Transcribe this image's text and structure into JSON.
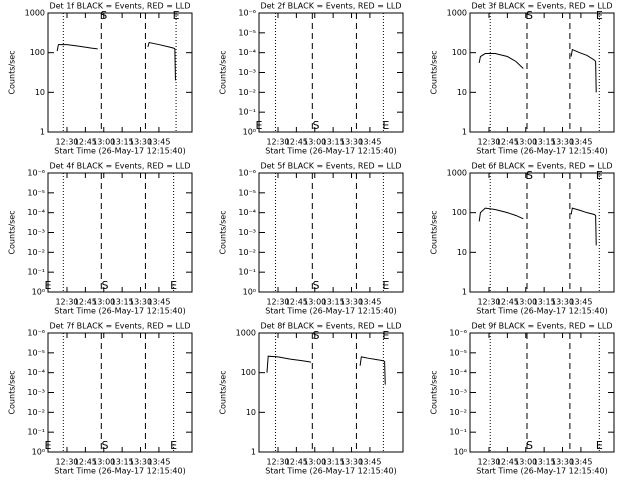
{
  "chart_data": [
    {
      "type": "line",
      "title": "Det 1f BLACK = Events, RED = LLD",
      "ylabel": "Counts/sec",
      "xlabel": "Start Time (26-May-17 12:15:40)",
      "xlim": [
        14.5,
        132
      ],
      "xticks": [
        {
          "value": 30,
          "label": "12:30"
        },
        {
          "value": 45,
          "label": "12:45"
        },
        {
          "value": 60,
          "label": "13:00"
        },
        {
          "value": 75,
          "label": "13:15"
        },
        {
          "value": 90,
          "label": "13:30"
        },
        {
          "value": 105,
          "label": "13:45"
        }
      ],
      "log_y": true,
      "ylim": [
        1,
        1000
      ],
      "yticks": [
        1,
        10,
        100,
        1000
      ],
      "vlines": {
        "dotted": [
          27,
          119
        ],
        "dashed": [
          58,
          94
        ]
      },
      "annotations": [
        {
          "text": "S",
          "x": 60,
          "position": "top"
        },
        {
          "text": "E",
          "x": 119,
          "position": "top"
        }
      ],
      "color": "#000000",
      "x": [
        22,
        23,
        30,
        40,
        50,
        55,
        75,
        96,
        97,
        105,
        113,
        117,
        118,
        118.5
      ],
      "values": [
        110,
        160,
        160,
        145,
        130,
        125,
        null,
        140,
        180,
        160,
        140,
        130,
        125,
        20
      ]
    },
    {
      "type": "line",
      "title": "Det 2f BLACK = Events, RED = LLD",
      "ylabel": "Counts/sec",
      "xlabel": "Start Time (26-May-17 12:15:40)",
      "xlim": [
        14.5,
        132
      ],
      "xticks": [
        {
          "value": 30,
          "label": "12:30"
        },
        {
          "value": 45,
          "label": "12:45"
        },
        {
          "value": 60,
          "label": "13:00"
        },
        {
          "value": 75,
          "label": "13:15"
        },
        {
          "value": 90,
          "label": "13:30"
        },
        {
          "value": 105,
          "label": "13:45"
        }
      ],
      "log_y": true,
      "ylim": [
        1,
        1e-06
      ],
      "yticks": [
        {
          "value": 1,
          "label": "10⁰"
        },
        {
          "value": 0.1,
          "label": "10⁻¹"
        },
        {
          "value": 0.01,
          "label": "10⁻²"
        },
        {
          "value": 0.001,
          "label": "10⁻³"
        },
        {
          "value": 0.0001,
          "label": "10⁻⁴"
        },
        {
          "value": 1e-05,
          "label": "10⁻⁵"
        },
        {
          "value": 1e-06,
          "label": "10⁻⁶"
        }
      ],
      "vlines": {
        "dotted": [
          28,
          116
        ],
        "dashed": [
          58,
          94
        ]
      },
      "annotations": [
        {
          "text": "E",
          "x": 14.5,
          "position": "bottom"
        },
        {
          "text": "S",
          "x": 61,
          "position": "bottom"
        },
        {
          "text": "E",
          "x": 118,
          "position": "bottom"
        }
      ]
    },
    {
      "type": "line",
      "title": "Det 3f BLACK = Events, RED = LLD",
      "ylabel": "Counts/sec",
      "xlabel": "Start Time (26-May-17 12:15:40)",
      "xlim": [
        14.5,
        132
      ],
      "xticks": [
        {
          "value": 30,
          "label": "12:30"
        },
        {
          "value": 45,
          "label": "12:45"
        },
        {
          "value": 60,
          "label": "13:00"
        },
        {
          "value": 75,
          "label": "13:15"
        },
        {
          "value": 90,
          "label": "13:30"
        },
        {
          "value": 105,
          "label": "13:45"
        }
      ],
      "log_y": true,
      "ylim": [
        1,
        1000
      ],
      "yticks": [
        1,
        10,
        100,
        1000
      ],
      "vlines": {
        "dotted": [
          31,
          120
        ],
        "dashed": [
          61,
          96
        ]
      },
      "annotations": [
        {
          "text": "S",
          "x": 63,
          "position": "top"
        },
        {
          "text": "E",
          "x": 120,
          "position": "top"
        }
      ],
      "color": "#000000",
      "x": [
        22,
        23,
        27,
        35,
        45,
        52,
        58,
        75,
        97,
        98,
        104,
        110,
        116,
        117,
        117.5
      ],
      "values": [
        55,
        80,
        95,
        95,
        80,
        60,
        40,
        null,
        80,
        120,
        100,
        85,
        65,
        60,
        10
      ]
    },
    {
      "type": "line",
      "title": "Det 4f BLACK = Events, RED = LLD",
      "ylabel": "Counts/sec",
      "xlabel": "Start Time (26-May-17 12:15:40)",
      "xlim": [
        14.5,
        132
      ],
      "xticks": [
        {
          "value": 30,
          "label": "12:30"
        },
        {
          "value": 45,
          "label": "12:45"
        },
        {
          "value": 60,
          "label": "13:00"
        },
        {
          "value": 75,
          "label": "13:15"
        },
        {
          "value": 90,
          "label": "13:30"
        },
        {
          "value": 105,
          "label": "13:45"
        }
      ],
      "log_y": true,
      "ylim": [
        1,
        1e-06
      ],
      "yticks": [
        {
          "value": 1,
          "label": "10⁰"
        },
        {
          "value": 0.1,
          "label": "10⁻¹"
        },
        {
          "value": 0.01,
          "label": "10⁻²"
        },
        {
          "value": 0.001,
          "label": "10⁻³"
        },
        {
          "value": 0.0001,
          "label": "10⁻⁴"
        },
        {
          "value": 1e-05,
          "label": "10⁻⁵"
        },
        {
          "value": 1e-06,
          "label": "10⁻⁶"
        }
      ],
      "vlines": {
        "dotted": [
          27,
          117
        ],
        "dashed": [
          58,
          94
        ]
      },
      "annotations": [
        {
          "text": "E",
          "x": 14.5,
          "position": "bottom"
        },
        {
          "text": "S",
          "x": 61,
          "position": "bottom"
        },
        {
          "text": "E",
          "x": 117,
          "position": "bottom"
        }
      ]
    },
    {
      "type": "line",
      "title": "Det 5f BLACK = Events, RED = LLD",
      "ylabel": "Counts/sec",
      "xlabel": "Start Time (26-May-17 12:15:40)",
      "xlim": [
        14.5,
        132
      ],
      "xticks": [
        {
          "value": 30,
          "label": "12:30"
        },
        {
          "value": 45,
          "label": "12:45"
        },
        {
          "value": 60,
          "label": "13:00"
        },
        {
          "value": 75,
          "label": "13:15"
        },
        {
          "value": 90,
          "label": "13:30"
        },
        {
          "value": 105,
          "label": "13:45"
        }
      ],
      "log_y": true,
      "ylim": [
        1,
        1e-06
      ],
      "yticks": [
        {
          "value": 1,
          "label": "10⁰"
        },
        {
          "value": 0.1,
          "label": "10⁻¹"
        },
        {
          "value": 0.01,
          "label": "10⁻²"
        },
        {
          "value": 0.001,
          "label": "10⁻³"
        },
        {
          "value": 0.0001,
          "label": "10⁻⁴"
        },
        {
          "value": 1e-05,
          "label": "10⁻⁵"
        },
        {
          "value": 1e-06,
          "label": "10⁻⁶"
        }
      ],
      "vlines": {
        "dotted": [
          28,
          116
        ],
        "dashed": [
          58,
          94
        ]
      },
      "annotations": [
        {
          "text": "S",
          "x": 61,
          "position": "bottom"
        },
        {
          "text": "E",
          "x": 118,
          "position": "bottom"
        }
      ]
    },
    {
      "type": "line",
      "title": "Det 6f BLACK = Events, RED = LLD",
      "ylabel": "Counts/sec",
      "xlabel": "Start Time (26-May-17 12:15:40)",
      "xlim": [
        14.5,
        132
      ],
      "xticks": [
        {
          "value": 30,
          "label": "12:30"
        },
        {
          "value": 45,
          "label": "12:45"
        },
        {
          "value": 60,
          "label": "13:00"
        },
        {
          "value": 75,
          "label": "13:15"
        },
        {
          "value": 90,
          "label": "13:30"
        },
        {
          "value": 105,
          "label": "13:45"
        }
      ],
      "log_y": true,
      "ylim": [
        1,
        1000
      ],
      "yticks": [
        1,
        10,
        100,
        1000
      ],
      "vlines": {
        "dotted": [
          31,
          120
        ],
        "dashed": [
          61,
          96
        ]
      },
      "annotations": [
        {
          "text": "S",
          "x": 63,
          "position": "top"
        },
        {
          "text": "E",
          "x": 120,
          "position": "top"
        }
      ],
      "color": "#000000",
      "x": [
        22,
        23,
        27,
        35,
        45,
        52,
        58,
        75,
        97,
        98,
        104,
        110,
        116,
        117,
        117.5
      ],
      "values": [
        60,
        100,
        130,
        120,
        100,
        85,
        70,
        null,
        90,
        130,
        115,
        100,
        90,
        85,
        15
      ]
    },
    {
      "type": "line",
      "title": "Det 7f BLACK = Events, RED = LLD",
      "ylabel": "Counts/sec",
      "xlabel": "Start Time (26-May-17 12:15:40)",
      "xlim": [
        14.5,
        132
      ],
      "xticks": [
        {
          "value": 30,
          "label": "12:30"
        },
        {
          "value": 45,
          "label": "12:45"
        },
        {
          "value": 60,
          "label": "13:00"
        },
        {
          "value": 75,
          "label": "13:15"
        },
        {
          "value": 90,
          "label": "13:30"
        },
        {
          "value": 105,
          "label": "13:45"
        }
      ],
      "log_y": true,
      "ylim": [
        1,
        1e-06
      ],
      "yticks": [
        {
          "value": 1,
          "label": "10⁰"
        },
        {
          "value": 0.1,
          "label": "10⁻¹"
        },
        {
          "value": 0.01,
          "label": "10⁻²"
        },
        {
          "value": 0.001,
          "label": "10⁻³"
        },
        {
          "value": 0.0001,
          "label": "10⁻⁴"
        },
        {
          "value": 1e-05,
          "label": "10⁻⁵"
        },
        {
          "value": 1e-06,
          "label": "10⁻⁶"
        }
      ],
      "vlines": {
        "dotted": [
          27,
          117
        ],
        "dashed": [
          58,
          94
        ]
      },
      "annotations": [
        {
          "text": "E",
          "x": 14.5,
          "position": "bottom"
        },
        {
          "text": "S",
          "x": 61,
          "position": "bottom"
        },
        {
          "text": "E",
          "x": 117,
          "position": "bottom"
        }
      ]
    },
    {
      "type": "line",
      "title": "Det 8f BLACK = Events, RED = LLD",
      "ylabel": "Counts/sec",
      "xlabel": "Start Time (26-May-17 12:15:40)",
      "xlim": [
        14.5,
        132
      ],
      "xticks": [
        {
          "value": 30,
          "label": "12:30"
        },
        {
          "value": 45,
          "label": "12:45"
        },
        {
          "value": 60,
          "label": "13:00"
        },
        {
          "value": 75,
          "label": "13:15"
        },
        {
          "value": 90,
          "label": "13:30"
        },
        {
          "value": 105,
          "label": "13:45"
        }
      ],
      "log_y": true,
      "ylim": [
        1,
        1000
      ],
      "yticks": [
        1,
        10,
        100,
        1000
      ],
      "vlines": {
        "dotted": [
          28,
          116
        ],
        "dashed": [
          58,
          94
        ]
      },
      "annotations": [
        {
          "text": "S",
          "x": 61,
          "position": "top"
        },
        {
          "text": "E",
          "x": 118,
          "position": "top"
        }
      ],
      "color": "#000000",
      "x": [
        21,
        22,
        30,
        40,
        50,
        57,
        75,
        97,
        98,
        104,
        110,
        116,
        117,
        117.5
      ],
      "values": [
        100,
        260,
        250,
        220,
        200,
        185,
        null,
        150,
        250,
        230,
        215,
        200,
        190,
        50
      ]
    },
    {
      "type": "line",
      "title": "Det 9f BLACK = Events, RED = LLD",
      "ylabel": "Counts/sec",
      "xlabel": "Start Time (26-May-17 12:15:40)",
      "xlim": [
        14.5,
        132
      ],
      "xticks": [
        {
          "value": 30,
          "label": "12:30"
        },
        {
          "value": 45,
          "label": "12:45"
        },
        {
          "value": 60,
          "label": "13:00"
        },
        {
          "value": 75,
          "label": "13:15"
        },
        {
          "value": 90,
          "label": "13:30"
        },
        {
          "value": 105,
          "label": "13:45"
        }
      ],
      "log_y": true,
      "ylim": [
        1,
        1e-06
      ],
      "yticks": [
        {
          "value": 1,
          "label": "10⁰"
        },
        {
          "value": 0.1,
          "label": "10⁻¹"
        },
        {
          "value": 0.01,
          "label": "10⁻²"
        },
        {
          "value": 0.001,
          "label": "10⁻³"
        },
        {
          "value": 0.0001,
          "label": "10⁻⁴"
        },
        {
          "value": 1e-05,
          "label": "10⁻⁵"
        },
        {
          "value": 1e-06,
          "label": "10⁻⁶"
        }
      ],
      "vlines": {
        "dotted": [
          31,
          120
        ],
        "dashed": [
          61,
          96
        ]
      },
      "annotations": [
        {
          "text": "S",
          "x": 63,
          "position": "bottom"
        },
        {
          "text": "E",
          "x": 120,
          "position": "bottom"
        }
      ]
    }
  ]
}
